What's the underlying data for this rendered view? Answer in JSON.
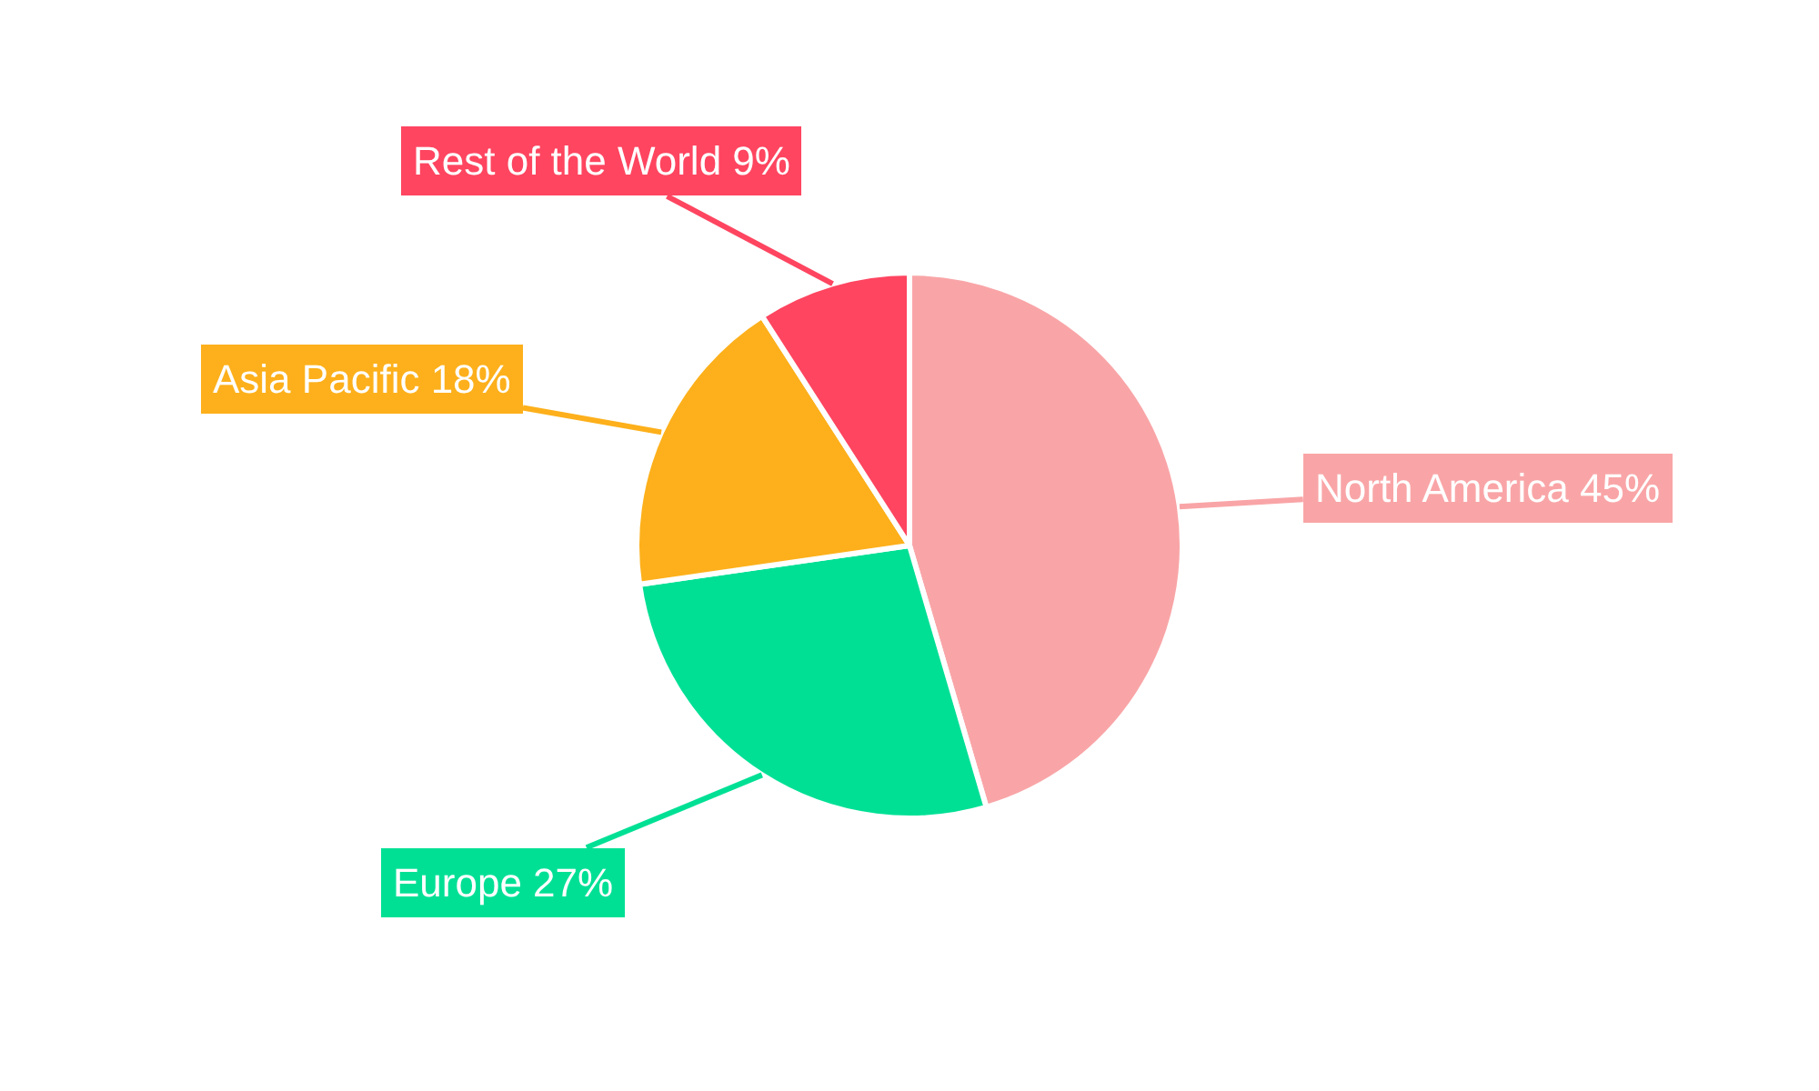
{
  "chart_data": {
    "type": "pie",
    "categories": [
      "North America",
      "Europe",
      "Asia Pacific",
      "Rest of the World"
    ],
    "values": [
      45,
      27,
      18,
      9
    ],
    "value_labels": [
      "45%",
      "27%",
      "18%",
      "9%"
    ],
    "colors": [
      "#f9a5a7",
      "#00e095",
      "#fdb01b",
      "#ff4560"
    ],
    "legend": false
  }
}
